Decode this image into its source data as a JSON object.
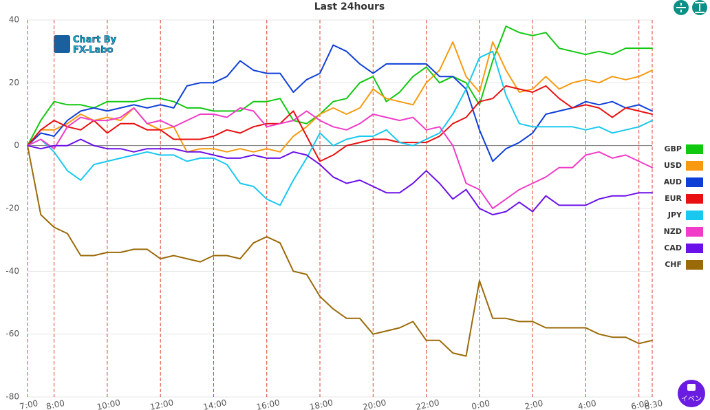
{
  "chart_data": {
    "type": "line",
    "title": "Last 24hours",
    "watermark": [
      "Chart By",
      "FX-Labo"
    ],
    "button": "イベン",
    "x": [
      0,
      0.5,
      1,
      1.5,
      2,
      2.5,
      3,
      3.5,
      4,
      4.5,
      5,
      5.5,
      6,
      6.5,
      7,
      7.5,
      8,
      8.5,
      9,
      9.5,
      10,
      10.5,
      11,
      11.5,
      12,
      12.5,
      13,
      13.5,
      14,
      14.5,
      15,
      15.5,
      16,
      16.5,
      17,
      17.5,
      18,
      18.5,
      19,
      19.5,
      20,
      20.5,
      21,
      21.5,
      22,
      22.5,
      23,
      23.5
    ],
    "xlim": [
      0,
      23.5
    ],
    "xticks": [
      {
        "value": 0,
        "label": "7:00"
      },
      {
        "value": 1,
        "label": "8:00"
      },
      {
        "value": 3,
        "label": "10:00"
      },
      {
        "value": 5,
        "label": "12:00"
      },
      {
        "value": 7,
        "label": "14:00"
      },
      {
        "value": 9,
        "label": "16:00"
      },
      {
        "value": 11,
        "label": "18:00"
      },
      {
        "value": 13,
        "label": "20:00"
      },
      {
        "value": 15,
        "label": "22:00"
      },
      {
        "value": 17,
        "label": "0:00"
      },
      {
        "value": 19,
        "label": "2:00"
      },
      {
        "value": 21,
        "label": "4:00"
      },
      {
        "value": 23,
        "label": "6:00"
      },
      {
        "value": 23.5,
        "label": "6:30"
      }
    ],
    "ylim": [
      -80,
      40
    ],
    "yticks": [
      -80,
      -60,
      -40,
      -20,
      0,
      20,
      40
    ],
    "grid": true,
    "legend": "right",
    "series": [
      {
        "name": "GBP",
        "color": "#11c811",
        "values": [
          0,
          8,
          14,
          13,
          13,
          12,
          14,
          14,
          14,
          15,
          15,
          14,
          12,
          12,
          11,
          11,
          11,
          14,
          14,
          15,
          8,
          7,
          10,
          14,
          15,
          20,
          22,
          14,
          17,
          22,
          25,
          20,
          22,
          20,
          13,
          27,
          38,
          36,
          35,
          36,
          31,
          30,
          29,
          30,
          29,
          31,
          31,
          31
        ]
      },
      {
        "name": "USD",
        "color": "#f79a10",
        "values": [
          0,
          5,
          5,
          7,
          10,
          8,
          9,
          8,
          12,
          7,
          5,
          6,
          -2,
          -1,
          -1,
          -2,
          -1,
          -2,
          -1,
          -2,
          3,
          6,
          10,
          12,
          10,
          12,
          18,
          15,
          14,
          13,
          20,
          24,
          33,
          22,
          17,
          33,
          24,
          17,
          18,
          22,
          18,
          20,
          21,
          20,
          22,
          21,
          22,
          24
        ]
      },
      {
        "name": "AUD",
        "color": "#0d3fd8",
        "values": [
          0,
          4,
          3,
          8,
          11,
          12,
          11,
          12,
          13,
          12,
          13,
          12,
          19,
          20,
          20,
          22,
          27,
          24,
          23,
          23,
          17,
          21,
          23,
          32,
          30,
          26,
          23,
          26,
          26,
          26,
          26,
          22,
          22,
          18,
          5,
          -5,
          -1,
          1,
          4,
          10,
          11,
          12,
          14,
          13,
          14,
          12,
          13,
          11
        ]
      },
      {
        "name": "EUR",
        "color": "#e81010",
        "values": [
          0,
          5,
          8,
          6,
          5,
          8,
          4,
          7,
          7,
          5,
          5,
          2,
          2,
          2,
          3,
          5,
          4,
          6,
          7,
          7,
          11,
          3,
          -5,
          -3,
          0,
          1,
          2,
          2,
          1,
          1,
          1,
          3,
          7,
          9,
          14,
          15,
          19,
          18,
          17,
          19,
          15,
          12,
          13,
          12,
          9,
          12,
          11,
          10
        ]
      },
      {
        "name": "JPY",
        "color": "#19c8f0",
        "values": [
          0,
          2,
          -2,
          -8,
          -11,
          -6,
          -5,
          -4,
          -3,
          -2,
          -3,
          -3,
          -5,
          -4,
          -4,
          -6,
          -12,
          -13,
          -17,
          -19,
          -11,
          -4,
          4,
          0,
          2,
          3,
          3,
          5,
          1,
          0,
          2,
          4,
          10,
          18,
          28,
          30,
          16,
          7,
          6,
          6,
          6,
          6,
          5,
          6,
          4,
          5,
          6,
          8
        ]
      },
      {
        "name": "NZD",
        "color": "#f03cc8",
        "values": [
          0,
          2,
          -1,
          6,
          9,
          8,
          8,
          9,
          12,
          7,
          8,
          6,
          8,
          10,
          10,
          9,
          12,
          11,
          6,
          7,
          8,
          11,
          8,
          6,
          5,
          7,
          10,
          9,
          8,
          9,
          5,
          6,
          0,
          -12,
          -14,
          -20,
          -17,
          -14,
          -12,
          -10,
          -7,
          -7,
          -3,
          -2,
          -4,
          -3,
          -5,
          -7
        ]
      },
      {
        "name": "CAD",
        "color": "#6a10e8",
        "values": [
          0,
          -1,
          0,
          0,
          2,
          0,
          -1,
          -1,
          -2,
          -1,
          -1,
          -1,
          -2,
          -2,
          -3,
          -4,
          -4,
          -3,
          -4,
          -4,
          -2,
          -3,
          -6,
          -10,
          -12,
          -11,
          -13,
          -15,
          -15,
          -12,
          -8,
          -12,
          -17,
          -14,
          -20,
          -22,
          -21,
          -18,
          -21,
          -16,
          -19,
          -19,
          -19,
          -17,
          -16,
          -16,
          -15,
          -15
        ]
      },
      {
        "name": "CHF",
        "color": "#9a6a08",
        "values": [
          0,
          -22,
          -26,
          -28,
          -35,
          -35,
          -34,
          -34,
          -33,
          -33,
          -36,
          -35,
          -36,
          -37,
          -35,
          -35,
          -36,
          -31,
          -29,
          -31,
          -40,
          -41,
          -48,
          -52,
          -55,
          -55,
          -60,
          -59,
          -58,
          -56,
          -62,
          -62,
          -66,
          -67,
          -43,
          -55,
          -55,
          -56,
          -56,
          -58,
          -58,
          -58,
          -58,
          -60,
          -61,
          -61,
          -63,
          -62
        ]
      }
    ]
  }
}
